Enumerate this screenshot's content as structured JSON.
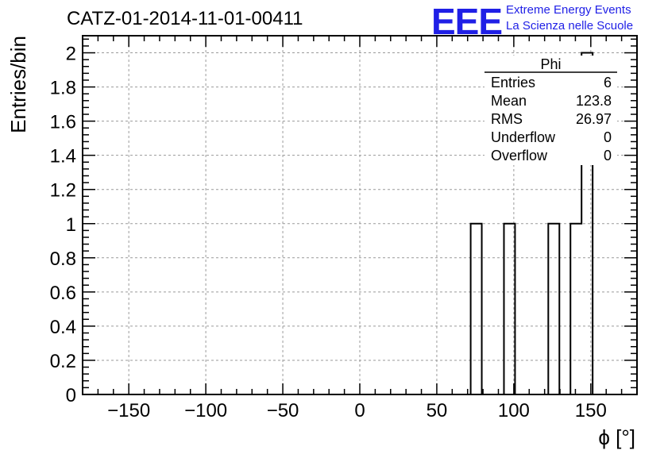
{
  "title": "CATZ-01-2014-11-01-00411",
  "logo": {
    "mark": "EEE",
    "line1": "Extreme Energy Events",
    "line2": "La Scienza nelle Scuole",
    "color": "#1f1fe6"
  },
  "stats": {
    "name": "Phi",
    "rows": [
      {
        "label": "Entries",
        "value": "6"
      },
      {
        "label": "Mean",
        "value": "123.8"
      },
      {
        "label": "RMS",
        "value": "26.97"
      },
      {
        "label": "Underflow",
        "value": "0"
      },
      {
        "label": "Overflow",
        "value": "0"
      }
    ]
  },
  "chart_data": {
    "type": "bar",
    "title": "CATZ-01-2014-11-01-00411",
    "xlabel": "ϕ [°]",
    "ylabel": "Entries/bin",
    "xlim": [
      -180,
      180
    ],
    "ylim": [
      0,
      2.1
    ],
    "grid": true,
    "bin_width": 7.2,
    "bins": [
      {
        "x0": 72,
        "x1": 79.2,
        "count": 1
      },
      {
        "x0": 93.6,
        "x1": 100.8,
        "count": 1
      },
      {
        "x0": 122.4,
        "x1": 129.6,
        "count": 1
      },
      {
        "x0": 136.8,
        "x1": 144,
        "count": 1
      },
      {
        "x0": 144,
        "x1": 151.2,
        "count": 2
      }
    ],
    "x_ticks": [
      -150,
      -100,
      -50,
      0,
      50,
      100,
      150
    ],
    "x_tick_labels": [
      "−150",
      "−100",
      "−50",
      "0",
      "50",
      "100",
      "150"
    ],
    "y_ticks": [
      0,
      0.2,
      0.4,
      0.6,
      0.8,
      1,
      1.2,
      1.4,
      1.6,
      1.8,
      2
    ],
    "y_tick_labels": [
      "0",
      "0.2",
      "0.4",
      "0.6",
      "0.8",
      "1",
      "1.2",
      "1.4",
      "1.6",
      "1.8",
      "2"
    ]
  }
}
